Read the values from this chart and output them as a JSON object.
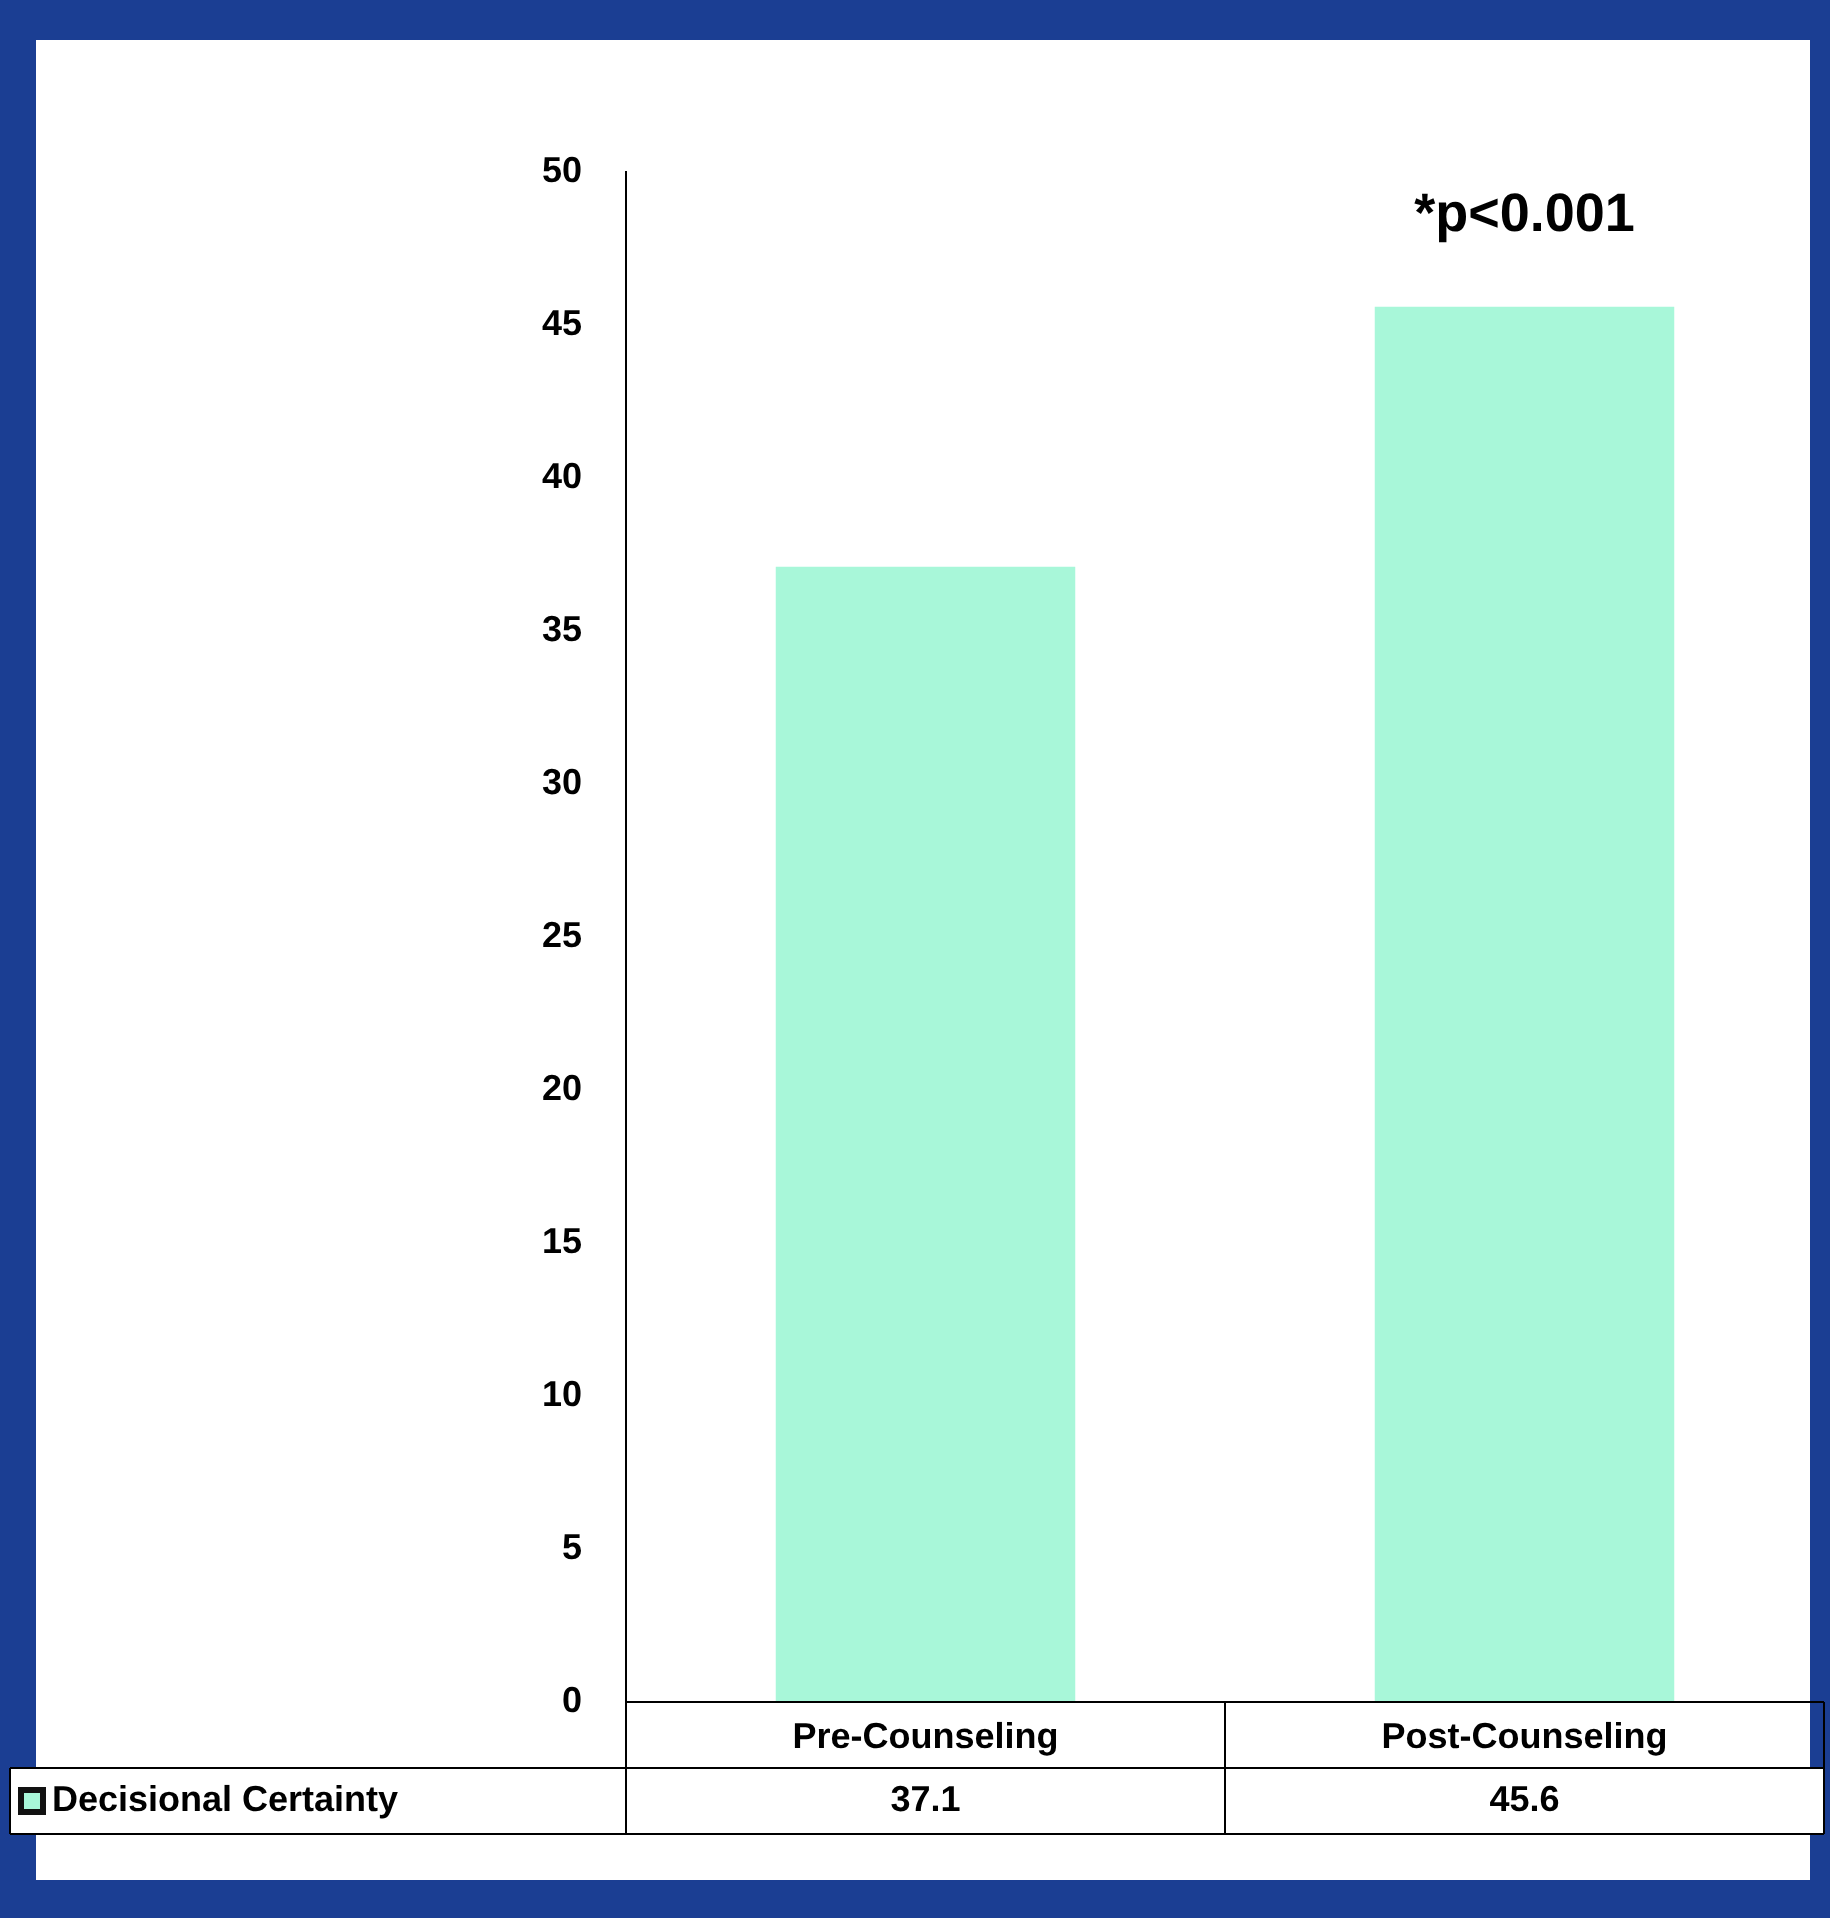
{
  "chart_data": {
    "type": "bar",
    "categories": [
      "Pre-Counseling",
      "Post-Counseling"
    ],
    "series": [
      {
        "name": "Decisional Certainty",
        "color": "#a8f7d9",
        "values": [
          37.1,
          45.6
        ]
      }
    ],
    "ylim": [
      0,
      50
    ],
    "yticks": [
      0,
      5,
      10,
      15,
      20,
      25,
      30,
      35,
      40,
      45,
      50
    ],
    "grid": false,
    "legend": "bottom left",
    "data_labels": true,
    "annotations": [
      "*p<0.001"
    ]
  }
}
